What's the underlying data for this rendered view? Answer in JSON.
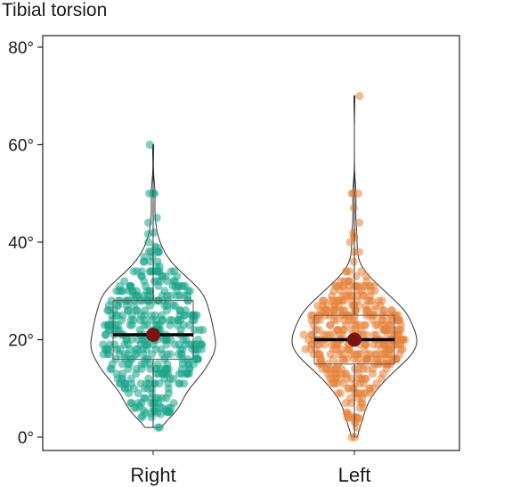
{
  "chart_data": {
    "type": "violin",
    "title": "Tibial torsion",
    "xlabel": "",
    "ylabel": "",
    "categories": [
      "Right",
      "Left"
    ],
    "y_ticks": [
      0,
      20,
      40,
      60,
      80
    ],
    "y_tick_labels": [
      "0°",
      "20°",
      "40°",
      "60°",
      "80°"
    ],
    "ylim": [
      -3,
      82
    ],
    "grid": false,
    "series": [
      {
        "category": "Right",
        "color": "#1aa68a",
        "min": 2,
        "q1": 16,
        "median": 21,
        "q3": 28,
        "max": 60,
        "mean": 21,
        "n_points": 420,
        "outliers": [
          60,
          50,
          50,
          50,
          45,
          44,
          2,
          2
        ]
      },
      {
        "category": "Left",
        "color": "#e8843a",
        "min": 0,
        "q1": 15,
        "median": 20,
        "q3": 25,
        "max": 70,
        "mean": 20,
        "n_points": 420,
        "outliers": [
          70,
          50,
          50,
          50,
          47,
          44,
          0,
          0
        ]
      }
    ],
    "mean_marker_color": "#7a1414",
    "median_line_color": "#000000"
  }
}
